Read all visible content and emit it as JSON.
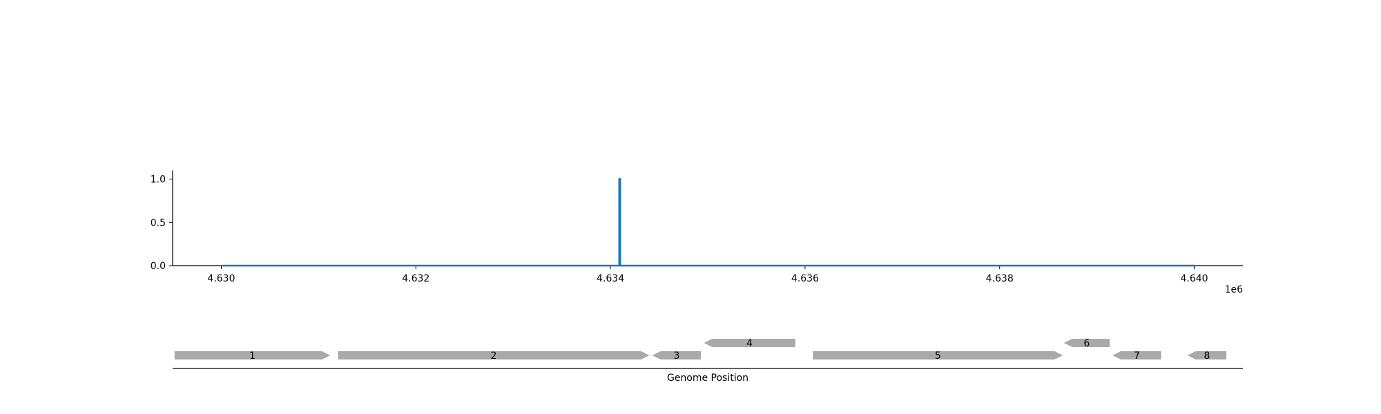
{
  "chart_data": {
    "type": "line",
    "title": "",
    "xlabel": "Genome Position",
    "ylabel": "",
    "x_offset_label": "1e6",
    "xlim": [
      4629500,
      4640500
    ],
    "ylim": [
      0.0,
      1.1
    ],
    "x_ticks": [
      4.63,
      4.632,
      4.634,
      4.636,
      4.638,
      4.64
    ],
    "x_tick_labels": [
      "4.630",
      "4.632",
      "4.634",
      "4.636",
      "4.638",
      "4.640"
    ],
    "y_ticks": [
      0.0,
      0.5,
      1.0
    ],
    "y_tick_labels": [
      "0.0",
      "0.5",
      "1.0"
    ],
    "grid": false,
    "series": [
      {
        "color": "#1f77b4",
        "x": [
          4630000,
          4634090,
          4634090,
          4634100,
          4634100,
          4640000
        ],
        "y": [
          0.0,
          0.0,
          1.0,
          1.0,
          0.0,
          0.0
        ]
      }
    ],
    "genes": [
      {
        "label": "1",
        "start": 4629520,
        "end": 4631120,
        "strand": "+",
        "row": 0
      },
      {
        "label": "2",
        "start": 4631200,
        "end": 4634400,
        "strand": "+",
        "row": 0
      },
      {
        "label": "3",
        "start": 4634430,
        "end": 4634930,
        "strand": "-",
        "row": 0
      },
      {
        "label": "4",
        "start": 4634960,
        "end": 4635900,
        "strand": "-",
        "row": 1
      },
      {
        "label": "5",
        "start": 4636080,
        "end": 4638650,
        "strand": "+",
        "row": 0
      },
      {
        "label": "6",
        "start": 4638660,
        "end": 4639130,
        "strand": "-",
        "row": 1
      },
      {
        "label": "7",
        "start": 4639160,
        "end": 4639660,
        "strand": "-",
        "row": 0
      },
      {
        "label": "8",
        "start": 4639930,
        "end": 4640330,
        "strand": "-",
        "row": 0
      }
    ],
    "gene_color": "#a9a9a9"
  }
}
